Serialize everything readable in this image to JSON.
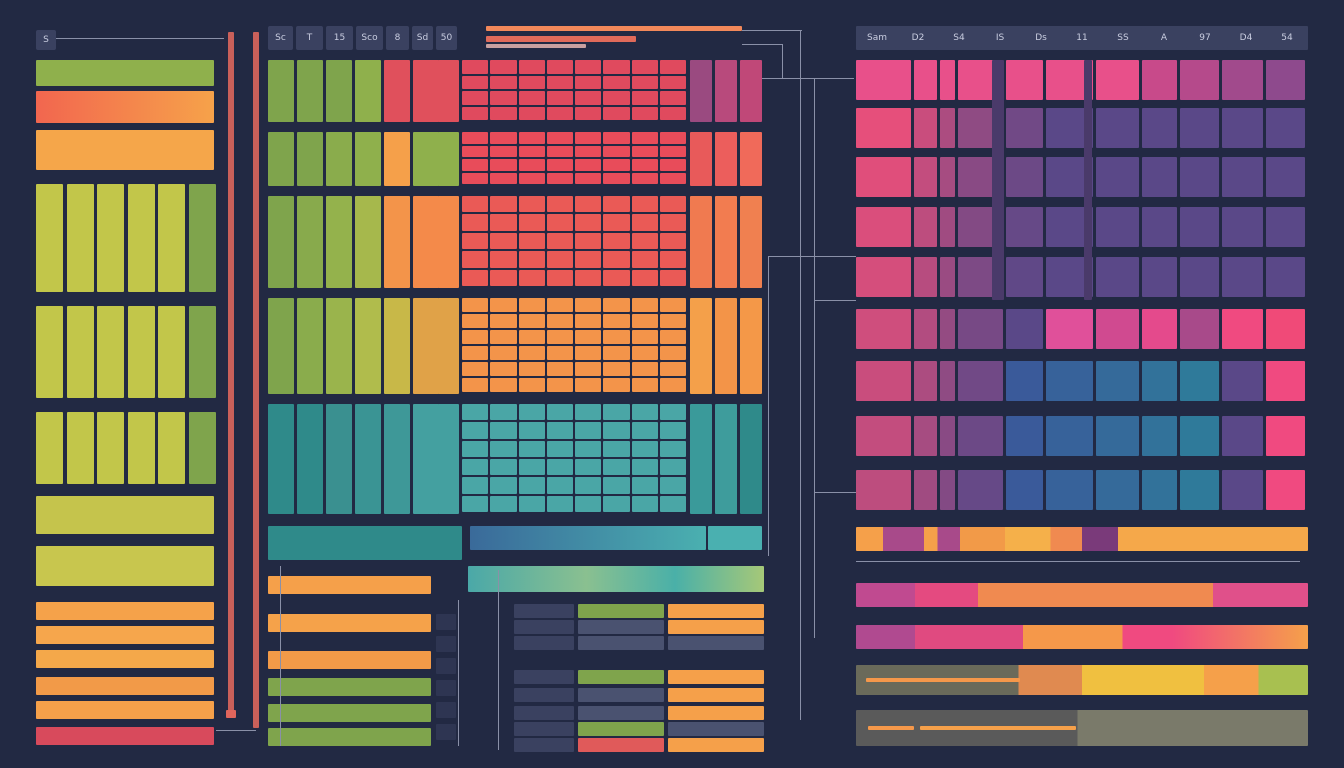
{
  "left_panel": {
    "header": "S"
  },
  "middle_panel": {
    "header": [
      "Sc",
      "T",
      "15",
      "Sco",
      "8",
      "Sd",
      "50"
    ]
  },
  "right_panel": {
    "header": [
      "Sam",
      "D2",
      "S4",
      "IS",
      "Ds",
      "11",
      "SS",
      "A",
      "97",
      "D4",
      "54"
    ]
  }
}
